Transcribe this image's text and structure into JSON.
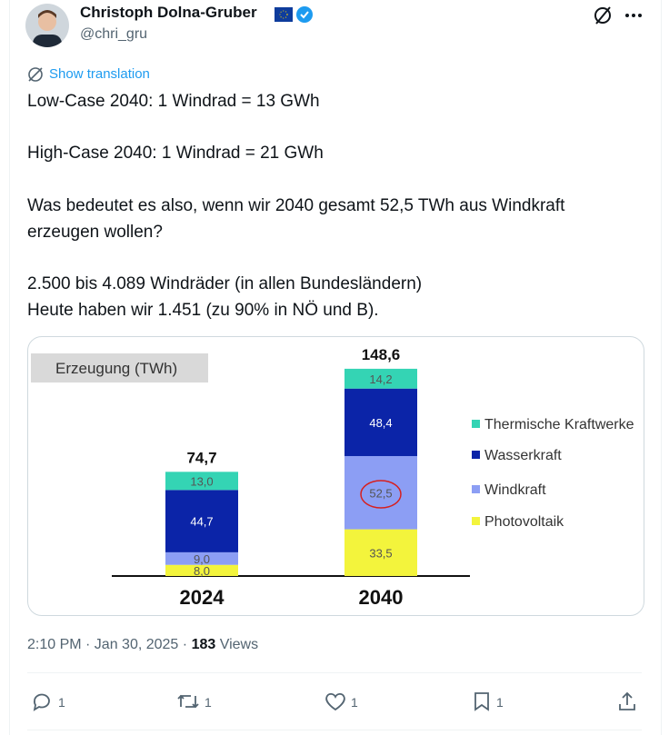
{
  "author": {
    "name": "Christoph Dolna-Gruber",
    "handle": "@chri_gru"
  },
  "translate": "Show translation",
  "paragraphs": [
    [
      "Low-Case 2040: 1 Windrad = 13 GWh"
    ],
    [
      "High-Case 2040: 1 Windrad = 21 GWh"
    ],
    [
      "Was bedeutet es also, wenn wir 2040 gesamt 52,5 TWh aus Windkraft",
      "erzeugen wollen?"
    ],
    [
      "2.500 bis 4.089 Windräder (in allen Bundesländern)",
      "Heute haben wir 1.451 (zu 90% in NÖ und B)."
    ]
  ],
  "chart_data": {
    "type": "stacked-bar",
    "title": "Erzeugung (TWh)",
    "categories": [
      "2024",
      "2040"
    ],
    "series": [
      {
        "name": "Photovoltaik",
        "color": "#f3f43c",
        "values": [
          8.0,
          33.5
        ],
        "value_labels": [
          "8,0",
          "33,5"
        ]
      },
      {
        "name": "Windkraft",
        "color": "#8c9ef4",
        "values": [
          9.0,
          52.5
        ],
        "value_labels": [
          "9,0",
          "52,5"
        ]
      },
      {
        "name": "Wasserkraft",
        "color": "#0b24a8",
        "values": [
          44.7,
          48.4
        ],
        "value_labels": [
          "44,7",
          "48,4"
        ]
      },
      {
        "name": "Thermische Kraftwerke",
        "color": "#34d4b4",
        "values": [
          13.0,
          14.2
        ],
        "value_labels": [
          "13,0",
          "14,2"
        ]
      }
    ],
    "totals": {
      "values": [
        74.7,
        148.6
      ],
      "value_labels": [
        "74,7",
        "148,6"
      ]
    }
  },
  "meta": {
    "timestamp": "2:10 PM · Jan 30, 2025 ·",
    "views": 183,
    "views_label": "Views"
  },
  "actions": {
    "replies": 1,
    "reposts": 1,
    "likes": 1,
    "bookmarks": 1
  }
}
